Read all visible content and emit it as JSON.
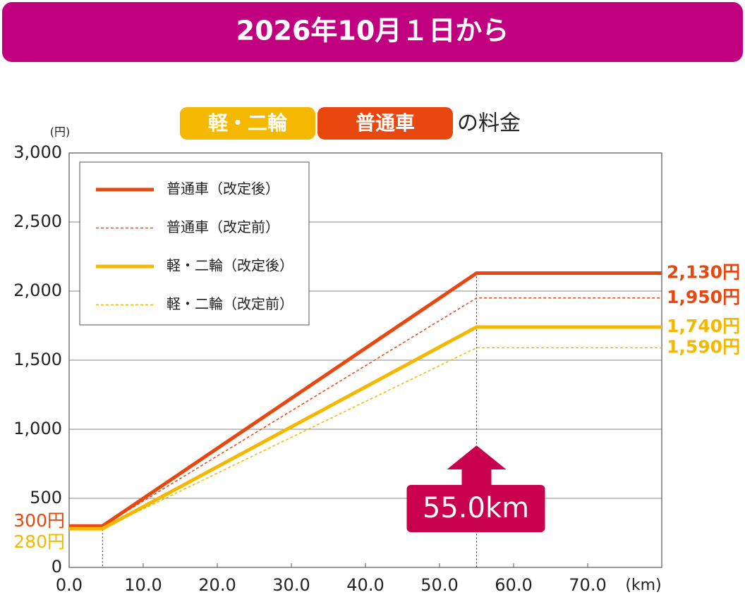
{
  "header": {
    "title": "2026年10月１日から"
  },
  "chart_data": {
    "type": "line",
    "subtitle": {
      "badges": [
        {
          "text": "軽・二輪",
          "color": "#f5b800"
        },
        {
          "text": "普通車",
          "color": "#e8470f"
        }
      ],
      "suffix": "の料金"
    },
    "y_unit": "(円)",
    "x_unit": "(km)",
    "xlim": [
      0,
      80
    ],
    "xticks": [
      {
        "value": 0,
        "label": "0.0"
      },
      {
        "value": 10,
        "label": "10.0"
      },
      {
        "value": 20,
        "label": "20.0"
      },
      {
        "value": 30,
        "label": "30.0"
      },
      {
        "value": 40,
        "label": "40.0"
      },
      {
        "value": 50,
        "label": "50.0"
      },
      {
        "value": 60,
        "label": "60.0"
      },
      {
        "value": 70,
        "label": "70.0"
      }
    ],
    "ylim": [
      0,
      3000
    ],
    "yticks": [
      0,
      500,
      {
        "value": 1000,
        "label": "1,000"
      },
      {
        "value": 1500,
        "label": "1,500"
      },
      {
        "value": 2000,
        "label": "2,000"
      },
      {
        "value": 2500,
        "label": "2,500"
      },
      {
        "value": 3000,
        "label": "3,000"
      }
    ],
    "grid": true,
    "x": [
      0,
      4.5,
      55,
      80
    ],
    "series": [
      {
        "name": "普通車（改定後）",
        "color": "#e8470f",
        "dashed": false,
        "values": [
          300,
          300,
          2130,
          2130
        ],
        "value_labels": [
          "300円",
          null,
          null,
          "2,130円"
        ]
      },
      {
        "name": "普通車（改定前）",
        "color": "#e8470f",
        "dashed": true,
        "values": [
          300,
          300,
          1950,
          1950
        ],
        "value_labels": [
          null,
          null,
          null,
          "1,950円"
        ]
      },
      {
        "name": "軽・二輪（改定後）",
        "color": "#f5b800",
        "dashed": false,
        "values": [
          280,
          280,
          1740,
          1740
        ],
        "value_labels": [
          "280円",
          null,
          null,
          "1,740円"
        ]
      },
      {
        "name": "軽・二輪（改定前）",
        "color": "#f5b800",
        "dashed": true,
        "values": [
          280,
          280,
          1590,
          1590
        ],
        "value_labels": [
          null,
          null,
          null,
          "1,590円"
        ]
      }
    ],
    "vlines": [
      4.5,
      55
    ],
    "annotation": {
      "text": "55.0km",
      "x": 55,
      "color": "#c8004d"
    },
    "banner_color": "#c0007e"
  }
}
